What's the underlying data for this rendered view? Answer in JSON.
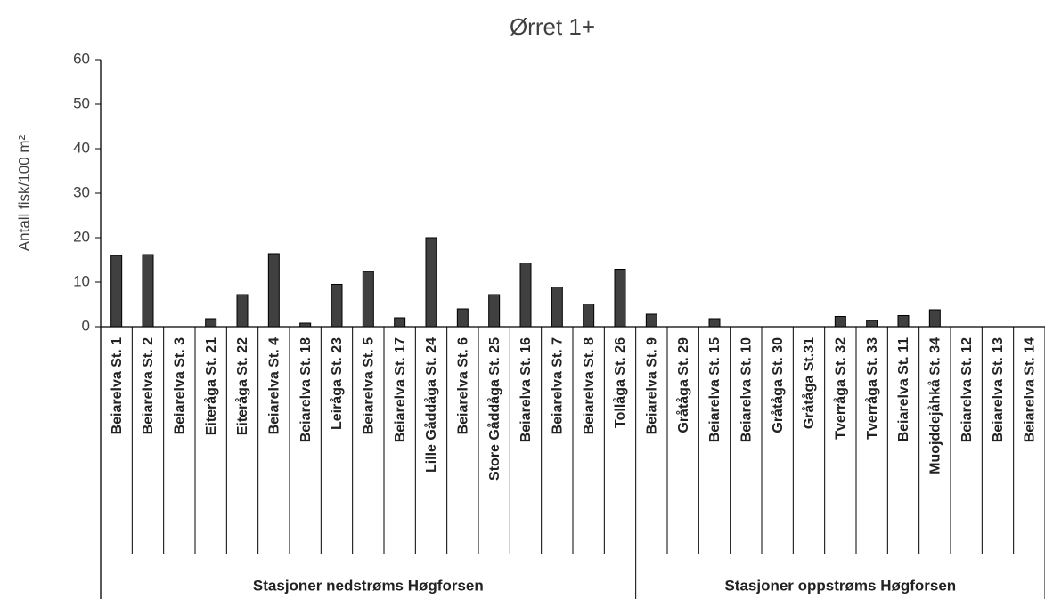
{
  "chart_data": {
    "type": "bar",
    "title": "Ørret 1+",
    "y_label": "Antall fisk/100 m²",
    "categories": [
      "Beiarelva  St. 1",
      "Beiarelva  St. 2",
      "Beiarelva  St. 3",
      "Eiteråga  St. 21",
      "Eiteråga  St. 22",
      "Beiarelva  St. 4",
      "Beiarelva  St. 18",
      "Leiråga  St. 23",
      "Beiarelva  St. 5",
      "Beiarelva  St. 17",
      "Lille Gåddåga  St. 24",
      "Beiarelva  St. 6",
      "Store Gåddåga  St. 25",
      "Beiarelva  St. 16",
      "Beiarelva  St. 7",
      "Beiarelva  St. 8",
      "Tollåga  St. 26",
      "Beiarelva  St. 9",
      "Gråtåga  St. 29",
      "Beiarelva  St. 15",
      "Beiarelva  St. 10",
      "Gråtåga  St. 30",
      "Gråtåga  St.31",
      "Tverråga  St. 32",
      "Tverråga  St. 33",
      "Beiarelva  St. 11",
      "Muojddejåhkå  St. 34",
      "Beiarelva  St. 12",
      "Beiarelva  St. 13",
      "Beiarelva  St. 14"
    ],
    "values": [
      16,
      16.2,
      0,
      1.8,
      7.2,
      16.4,
      0.8,
      9.5,
      12.4,
      2,
      20,
      4,
      7.2,
      14.3,
      8.9,
      5.1,
      12.9,
      2.8,
      0,
      1.8,
      0,
      0,
      0,
      2.3,
      1.4,
      2.5,
      3.8,
      0,
      0,
      0
    ],
    "groups": [
      {
        "name": "Stasjoner nedstrøms Høgforsen",
        "size": 17
      },
      {
        "name": "Stasjoner oppstrøms Høgforsen",
        "size": 13
      }
    ],
    "color": "#404040",
    "ylim": [
      0,
      60
    ],
    "yticks": [
      0,
      10,
      20,
      30,
      40,
      50,
      60
    ],
    "grid": false
  }
}
